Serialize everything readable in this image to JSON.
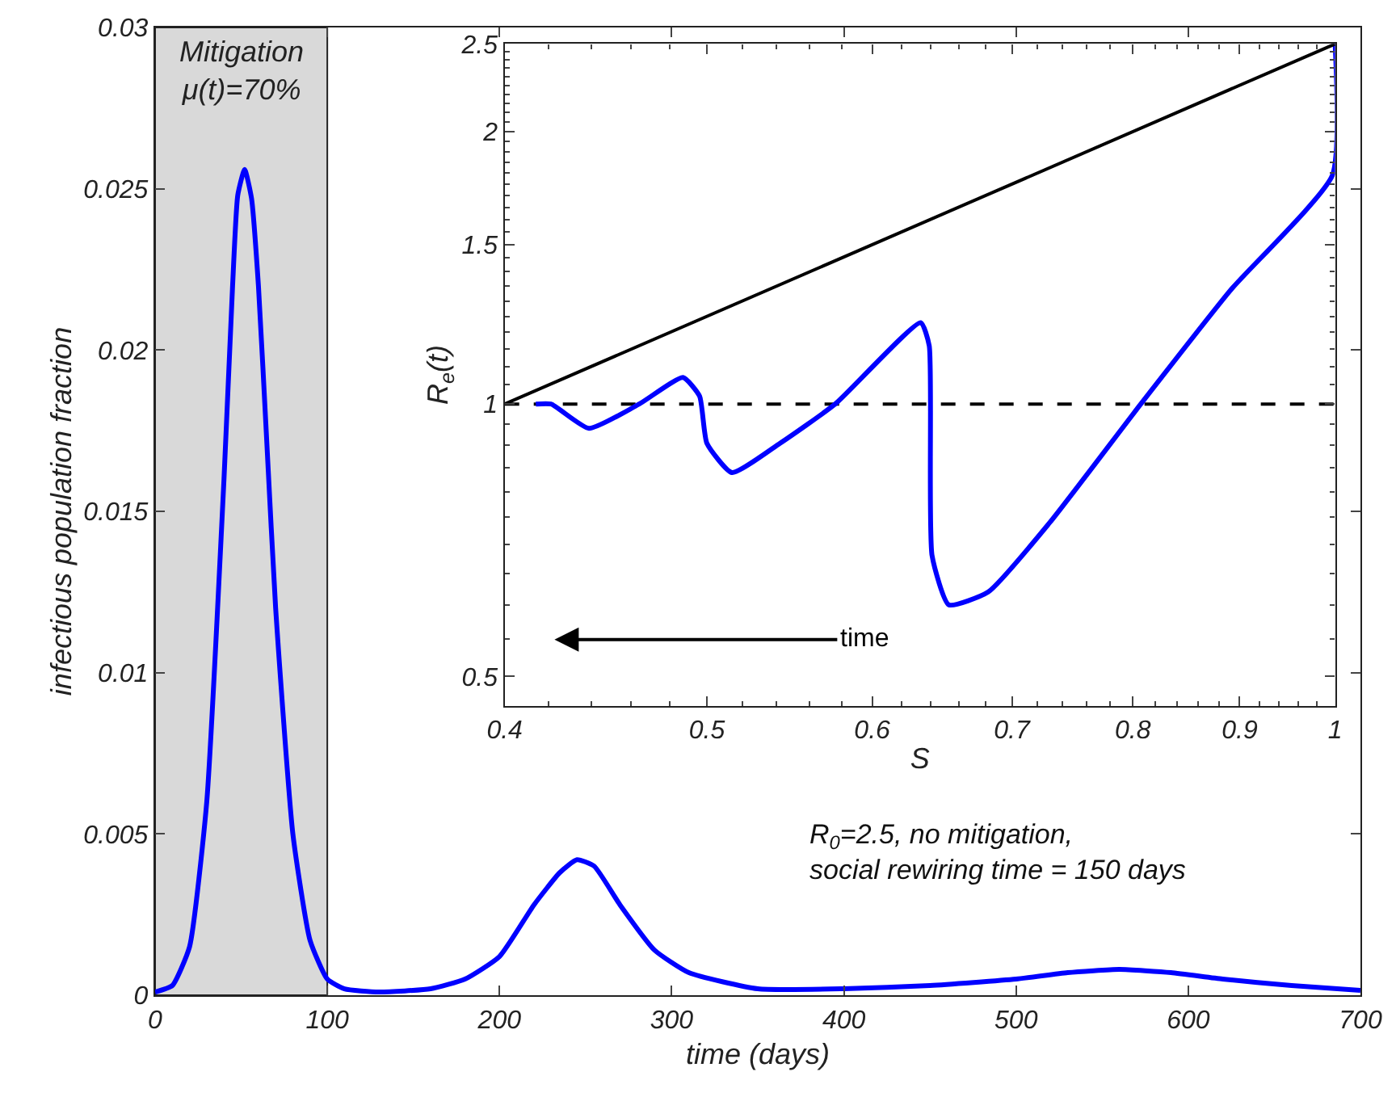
{
  "chart_data": [
    {
      "type": "line",
      "xlabel": "time (days)",
      "ylabel": "infectious population fraction",
      "xlim": [
        0,
        700
      ],
      "ylim": [
        0,
        0.03
      ],
      "xticks": [
        0,
        100,
        200,
        300,
        400,
        500,
        600,
        700
      ],
      "yticks": [
        0,
        0.005,
        0.01,
        0.015,
        0.02,
        0.025,
        0.03
      ],
      "grid": false,
      "x": [
        0,
        10,
        20,
        30,
        40,
        45,
        48,
        52,
        56,
        60,
        65,
        70,
        80,
        90,
        100,
        110,
        130,
        160,
        180,
        200,
        220,
        235,
        245,
        255,
        270,
        290,
        310,
        350,
        400,
        450,
        500,
        530,
        560,
        590,
        620,
        660,
        700
      ],
      "series": [
        {
          "color": "#0000ff",
          "values": [
            0.0001,
            0.0003,
            0.0015,
            0.006,
            0.016,
            0.022,
            0.0248,
            0.0256,
            0.0247,
            0.022,
            0.017,
            0.012,
            0.005,
            0.0017,
            0.0005,
            0.0002,
            0.0001,
            0.0002,
            0.0005,
            0.0012,
            0.0028,
            0.0038,
            0.0042,
            0.004,
            0.0028,
            0.0014,
            0.0007,
            0.0002,
            0.0002,
            0.0003,
            0.0005,
            0.0007,
            0.0008,
            0.0007,
            0.0005,
            0.0003,
            0.00015
          ]
        }
      ],
      "bands": [
        {
          "axis": "x",
          "from": 0,
          "to": 100,
          "label": "Mitigation\nμ(t)=70%",
          "color": "#d9d9d9"
        }
      ],
      "annotations": [
        "R$_{0}$=2.5, no mitigation,\nsocial rewiring time = 150 days"
      ]
    },
    {
      "type": "line",
      "xlabel": "S",
      "ylabel": "R$_{e}$(t)",
      "log": "xy",
      "xlim": [
        0.4,
        1
      ],
      "ylim": [
        0.464,
        2.5
      ],
      "xticks": [
        0.4,
        0.5,
        0.6,
        0.7,
        0.8,
        0.9,
        1
      ],
      "yticks": [
        0.5,
        1,
        1.5,
        2,
        2.5
      ],
      "grid": false,
      "series": [
        {
          "color": "#0000ff",
          "x": [
            0.414,
            0.421,
            0.439,
            0.464,
            0.487,
            0.496,
            0.5,
            0.514,
            0.542,
            0.576,
            0.633,
            0.639,
            0.641,
            0.653,
            0.682,
            0.73,
            0.807,
            0.892,
            0.997,
            1
          ],
          "values": [
            1,
            1,
            0.94,
            1,
            1.07,
            1.02,
            0.905,
            0.84,
            0.905,
            1,
            1.23,
            1.16,
            0.68,
            0.6,
            0.62,
            0.74,
            1,
            1.34,
            1.79,
            2.5
          ]
        },
        {
          "color": "#000000",
          "x": [
            0.4,
            1
          ],
          "values": [
            1,
            2.5
          ]
        }
      ],
      "ref_lines": [
        {
          "axis": "y",
          "value": 1,
          "color": "#000000",
          "line_style": "dashed"
        }
      ],
      "annotations": [
        "time"
      ]
    }
  ]
}
